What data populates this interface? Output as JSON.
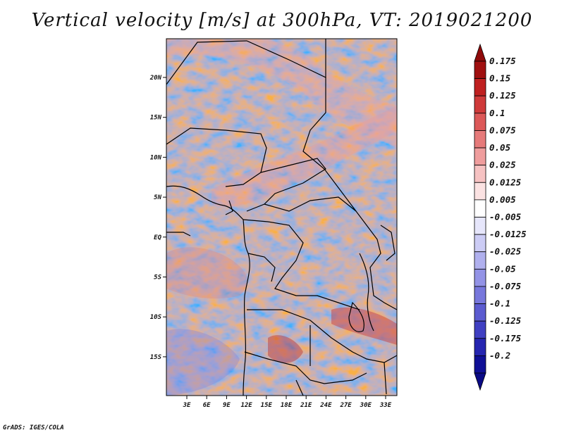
{
  "title": "Vertical velocity [m/s] at 300hPa, VT: 2019021200",
  "credit": "GrADS: IGES/COLA",
  "map": {
    "lat_labels": [
      "20N",
      "15N",
      "10N",
      "5N",
      "EQ",
      "5S",
      "10S",
      "15S"
    ],
    "lon_labels": [
      "3E",
      "6E",
      "9E",
      "12E",
      "15E",
      "18E",
      "21E",
      "24E",
      "27E",
      "30E",
      "33E"
    ]
  },
  "colorbar": {
    "levels": [
      "0.175",
      "0.15",
      "0.125",
      "0.1",
      "0.075",
      "0.05",
      "0.025",
      "0.0125",
      "0.005",
      "-0.005",
      "-0.0125",
      "-0.025",
      "-0.05",
      "-0.075",
      "-0.1",
      "-0.125",
      "-0.175",
      "-0.2"
    ],
    "colors": [
      "#a01010",
      "#bf2020",
      "#cf3a3a",
      "#dc5858",
      "#e67a7a",
      "#ef9d9d",
      "#f6c2c2",
      "#fbe2e2",
      "#ffffff",
      "#e6e6fb",
      "#ccccf5",
      "#b0b0ee",
      "#9393e6",
      "#7777dc",
      "#5b5bd0",
      "#3f3fc2",
      "#2525b0",
      "#0f0f96"
    ],
    "top_arrow_color": "#8f0a0a",
    "bottom_arrow_color": "#0a0a85"
  }
}
